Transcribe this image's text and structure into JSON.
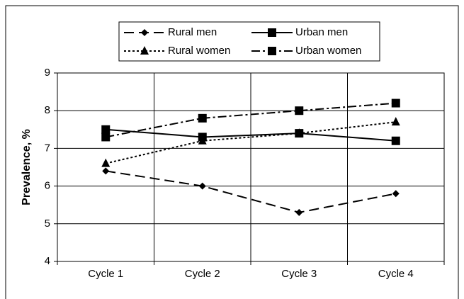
{
  "chart_data": {
    "type": "line",
    "categories": [
      "Cycle 1",
      "Cycle 2",
      "Cycle 3",
      "Cycle 4"
    ],
    "series": [
      {
        "name": "Rural men",
        "color": "#000000",
        "dash": "14,7",
        "marker": "diamond",
        "values": [
          6.4,
          6.0,
          5.3,
          5.8
        ]
      },
      {
        "name": "Urban men",
        "color": "#000000",
        "dash": "none",
        "marker": "square",
        "values": [
          7.5,
          7.3,
          7.4,
          7.2
        ]
      },
      {
        "name": "Rural women",
        "color": "#000000",
        "dash": "3,3",
        "marker": "triangle",
        "values": [
          6.6,
          7.2,
          7.4,
          7.7
        ]
      },
      {
        "name": "Urban women",
        "color": "#000000",
        "dash": "12,4,3,4",
        "marker": "square",
        "values": [
          7.3,
          7.8,
          8.0,
          8.2
        ]
      }
    ],
    "y_label": "Prevalence, %",
    "ylim": [
      4,
      9
    ],
    "yticks": [
      4,
      5,
      6,
      7,
      8,
      9
    ],
    "grid": true,
    "legend": "top"
  }
}
